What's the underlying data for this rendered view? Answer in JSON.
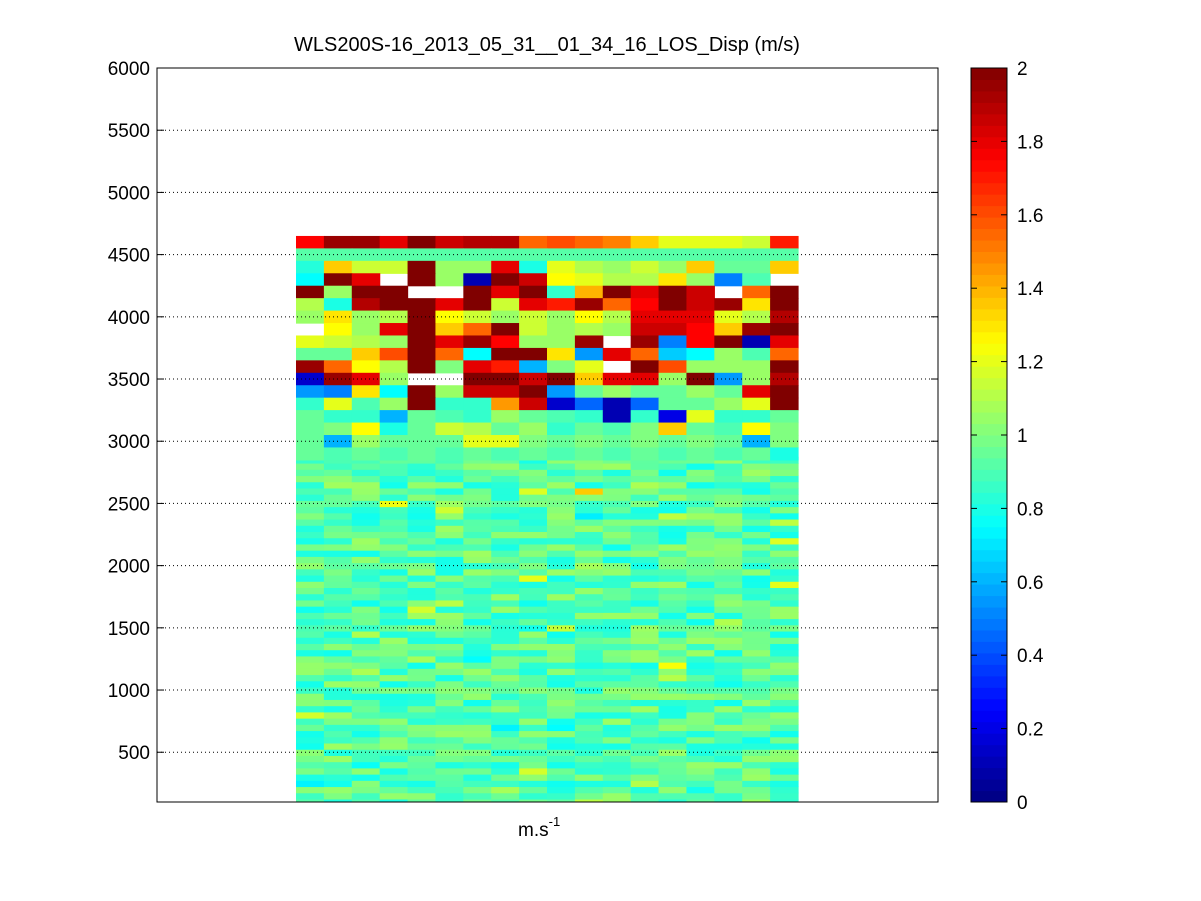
{
  "chart_data": {
    "type": "heatmap",
    "title": "WLS200S-16_2013_05_31__01_34_16_LOS_Disp (m/s)",
    "xlabel": {
      "base": "m.s",
      "superscript": "-1"
    },
    "ylabel": "",
    "ylim": [
      100,
      6000
    ],
    "yticks": [
      500,
      1000,
      1500,
      2000,
      2500,
      3000,
      3500,
      4000,
      4500,
      5000,
      5500,
      6000
    ],
    "grid": "horizontal-dotted",
    "colormap": "jet",
    "clim": [
      0,
      2
    ],
    "colorbar_ticks": [
      0,
      0.2,
      0.4,
      0.6,
      0.8,
      1,
      1.2,
      1.4,
      1.6,
      1.8,
      2
    ],
    "columns": 18,
    "range_levels": {
      "min": 100,
      "max": 4600,
      "step": 50
    },
    "top_rows": [
      {
        "y": 4600,
        "values": [
          1.75,
          1.95,
          1.95,
          1.8,
          2.1,
          1.85,
          1.9,
          1.9,
          1.55,
          1.6,
          1.55,
          1.5,
          1.35,
          1.2,
          1.2,
          1.2,
          1.15,
          1.7
        ]
      },
      {
        "y": 4500,
        "values": [
          0.92,
          0.92,
          0.92,
          0.92,
          0.92,
          0.92,
          0.92,
          0.92,
          0.92,
          0.92,
          0.92,
          0.92,
          0.92,
          0.92,
          0.92,
          0.92,
          0.92,
          0.92
        ]
      },
      {
        "y": 4400,
        "values": [
          0.82,
          1.35,
          1.15,
          1.15,
          2.1,
          1.05,
          1.05,
          1.8,
          0.8,
          1.2,
          1.1,
          1.05,
          1.15,
          1.05,
          1.35,
          0.95,
          0.95,
          1.35
        ]
      },
      {
        "y": 4300,
        "values": [
          0.75,
          2.0,
          1.8,
          null,
          2.1,
          1.05,
          0.1,
          2.0,
          1.85,
          1.25,
          1.2,
          1.1,
          1.1,
          1.3,
          1.05,
          0.5,
          0.9,
          null
        ]
      },
      {
        "y": 4200,
        "values": [
          2.0,
          1.05,
          2.0,
          2.0,
          null,
          null,
          2.0,
          1.8,
          2.0,
          0.85,
          1.4,
          2.0,
          1.8,
          2.0,
          1.85,
          null,
          1.55,
          2.0
        ]
      },
      {
        "y": 4100,
        "values": [
          1.1,
          0.8,
          1.9,
          2.0,
          2.05,
          1.8,
          2.0,
          1.15,
          1.8,
          1.7,
          1.95,
          1.55,
          1.75,
          2.0,
          1.85,
          1.95,
          1.3,
          2.0
        ]
      },
      {
        "y": 4000,
        "values": [
          1.05,
          1.3,
          1.05,
          1.1,
          2.0,
          1.25,
          1.15,
          1.05,
          1.15,
          1.05,
          1.25,
          1.1,
          1.8,
          1.8,
          1.8,
          1.2,
          1.1,
          1.9
        ]
      },
      {
        "y": 3900,
        "values": [
          null,
          1.25,
          1.05,
          1.8,
          2.0,
          1.35,
          1.55,
          2.0,
          1.15,
          1.05,
          1.1,
          1.05,
          1.85,
          1.85,
          1.75,
          1.35,
          1.95,
          2.0
        ]
      },
      {
        "y": 3800,
        "values": [
          1.2,
          1.15,
          1.1,
          1.05,
          2.0,
          1.8,
          1.95,
          1.75,
          1.05,
          1.05,
          1.95,
          null,
          1.95,
          0.5,
          1.75,
          2.0,
          0.1,
          1.8
        ]
      },
      {
        "y": 3700,
        "values": [
          0.95,
          0.95,
          1.35,
          1.6,
          2.0,
          1.55,
          0.75,
          2.0,
          2.0,
          1.3,
          0.55,
          1.8,
          1.55,
          0.65,
          0.75,
          1.05,
          0.9,
          1.55
        ]
      },
      {
        "y": 3600,
        "values": [
          1.95,
          1.55,
          1.25,
          1.1,
          2.0,
          1.0,
          1.8,
          1.7,
          0.6,
          1.0,
          1.2,
          null,
          2.0,
          1.6,
          1.05,
          1.05,
          1.05,
          2.0
        ]
      },
      {
        "y": 3500,
        "values": [
          0.15,
          1.95,
          1.8,
          1.05,
          null,
          null,
          2.0,
          2.0,
          1.85,
          2.0,
          1.35,
          1.8,
          1.8,
          1.05,
          2.0,
          0.55,
          1.05,
          1.9
        ]
      },
      {
        "y": 3400,
        "values": [
          0.55,
          0.5,
          1.3,
          0.75,
          2.0,
          1.05,
          1.85,
          1.85,
          2.0,
          0.55,
          0.95,
          1.05,
          0.95,
          0.95,
          1.05,
          0.95,
          1.8,
          2.0
        ]
      },
      {
        "y": 3300,
        "values": [
          0.85,
          1.2,
          0.9,
          1.05,
          2.0,
          0.85,
          0.85,
          1.45,
          1.85,
          0.15,
          0.45,
          0.1,
          0.45,
          0.95,
          0.95,
          1.05,
          1.2,
          2.0
        ]
      },
      {
        "y": 3200,
        "values": [
          0.95,
          0.85,
          0.85,
          0.6,
          0.95,
          0.9,
          0.85,
          1.05,
          0.95,
          0.9,
          0.85,
          0.1,
          0.85,
          0.2,
          1.2,
          0.85,
          0.85,
          0.95
        ]
      },
      {
        "y": 3100,
        "values": [
          0.95,
          1.0,
          1.25,
          0.8,
          0.95,
          1.15,
          1.1,
          0.95,
          1.05,
          0.85,
          0.95,
          0.9,
          1.0,
          1.35,
          0.95,
          0.9,
          1.25,
          1.0
        ]
      },
      {
        "y": 3000,
        "values": [
          0.95,
          0.6,
          1.05,
          0.95,
          0.95,
          0.95,
          1.2,
          1.2,
          1.0,
          0.95,
          1.0,
          0.95,
          1.0,
          0.95,
          1.0,
          0.95,
          0.6,
          1.0
        ]
      },
      {
        "y": 2900,
        "values": [
          0.95,
          0.9,
          0.95,
          0.9,
          0.95,
          0.9,
          0.95,
          0.9,
          0.95,
          0.9,
          0.95,
          0.9,
          0.95,
          0.9,
          0.95,
          0.9,
          0.95,
          0.8
        ]
      }
    ],
    "lower_rows_summary": {
      "y_range": [
        100,
        2850
      ],
      "typical_value": 0.92,
      "value_range": [
        0.7,
        1.2
      ]
    }
  }
}
